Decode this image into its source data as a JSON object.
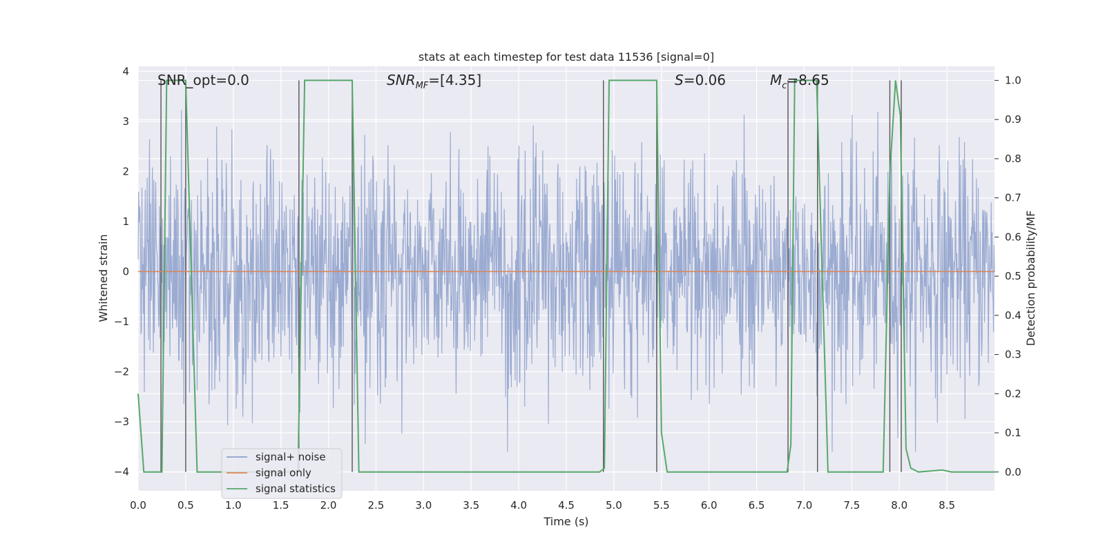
{
  "chart_data": {
    "type": "line",
    "title": "stats at each timestep for test data 11536 [signal=0]",
    "xlabel": "Time (s)",
    "ylabel": "Whitened strain",
    "y2label": "Detection probability/MF",
    "xlim": [
      0,
      9.0
    ],
    "ylim": [
      -4.38,
      4.1
    ],
    "y2lim": [
      -0.048,
      1.036
    ],
    "x_ticks": [
      0.0,
      0.5,
      1.0,
      1.5,
      2.0,
      2.5,
      3.0,
      3.5,
      4.0,
      4.5,
      5.0,
      5.5,
      6.0,
      6.5,
      7.0,
      7.5,
      8.0,
      8.5
    ],
    "x_tick_labels": [
      "0.0",
      "0.5",
      "1.0",
      "1.5",
      "2.0",
      "2.5",
      "3.0",
      "3.5",
      "4.0",
      "4.5",
      "5.0",
      "5.5",
      "6.0",
      "6.5",
      "7.0",
      "7.5",
      "8.0",
      "8.5"
    ],
    "y_ticks": [
      4,
      3,
      2,
      1,
      0,
      -1,
      -2,
      -3,
      -4
    ],
    "y_tick_labels": [
      "4",
      "3",
      "2",
      "1",
      "0",
      "−1",
      "−2",
      "−3",
      "−4"
    ],
    "y2_ticks": [
      1.0,
      0.9,
      0.8,
      0.7,
      0.6,
      0.5,
      0.4,
      0.3,
      0.2,
      0.1,
      0.0
    ],
    "y2_tick_labels": [
      "1.0",
      "0.9",
      "0.8",
      "0.7",
      "0.6",
      "0.5",
      "0.4",
      "0.3",
      "0.2",
      "0.1",
      "0.0"
    ],
    "grid": true,
    "legend_position": "bottom-left",
    "annotations": {
      "snr_opt": "SNR_opt=0.0",
      "snr_mf_sym": "SNR",
      "snr_mf_sub": "MF",
      "snr_mf_val": "=[4.35]",
      "s_sym": "S",
      "s_val": "=0.06",
      "mc_sym": "M",
      "mc_sub": "c",
      "mc_val": "=8.65"
    },
    "series": [
      {
        "name": "signal+ noise",
        "color": "#8da0cb",
        "axis": "left",
        "sample_count": 1800,
        "approx_envelope": [
          -3.6,
          3.55
        ]
      },
      {
        "name": "signal only",
        "color": "#dd8452",
        "axis": "left",
        "x": [
          0.0,
          9.0
        ],
        "y": [
          0.0,
          0.0
        ]
      },
      {
        "name": "signal statistics",
        "color": "#55a868",
        "axis": "right",
        "x": [
          0.0,
          0.06,
          0.25,
          0.3,
          0.5,
          0.62,
          1.68,
          1.75,
          2.25,
          2.32,
          4.85,
          4.9,
          4.95,
          5.45,
          5.5,
          5.56,
          6.5,
          6.82,
          6.86,
          6.9,
          7.13,
          7.25,
          7.83,
          7.9,
          7.96,
          8.01,
          8.07,
          8.12,
          8.2,
          8.45,
          8.55,
          9.0
        ],
        "y": [
          0.2,
          0.0,
          0.0,
          1.0,
          1.0,
          0.0,
          0.0,
          1.0,
          1.0,
          0.0,
          0.0,
          0.01,
          1.0,
          1.0,
          0.1,
          0.0,
          0.0,
          0.0,
          0.07,
          1.0,
          1.0,
          0.0,
          0.0,
          0.76,
          1.0,
          0.91,
          0.06,
          0.01,
          0.0,
          0.005,
          0.0,
          0.0
        ]
      }
    ],
    "vertical_markers": [
      0.24,
      0.5,
      1.69,
      2.25,
      4.89,
      5.45,
      6.83,
      7.14,
      7.9,
      8.02
    ]
  }
}
